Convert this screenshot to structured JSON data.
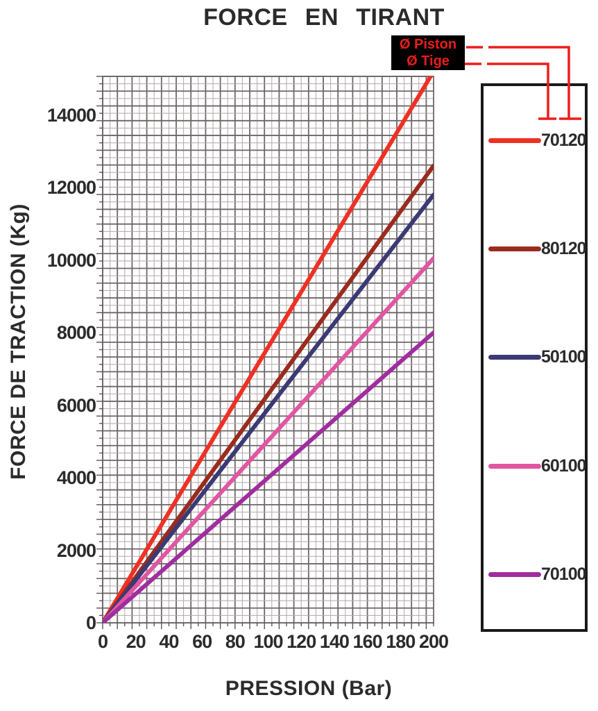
{
  "title": "FORCE EN TIRANT",
  "annotation": {
    "piston_label": "Ø Piston",
    "tige_label": "Ø Tige",
    "text_color": "#ed1c1c",
    "bg_color": "#000000",
    "connector_color": "#ed1c1c"
  },
  "legend": {
    "items": [
      {
        "label": "70120",
        "color": "#ee3124"
      },
      {
        "label": "80120",
        "color": "#9a2b1e"
      },
      {
        "label": "50100",
        "color": "#3b3a74"
      },
      {
        "label": "60100",
        "color": "#e156a2"
      },
      {
        "label": "70100",
        "color": "#a02d9f"
      }
    ]
  },
  "chart_data": {
    "type": "line",
    "title": "FORCE EN TIRANT",
    "xlabel": "PRESSION (Bar)",
    "ylabel": "FORCE DE TRACTION (Kg)",
    "xlim": [
      0,
      200
    ],
    "ylim": [
      0,
      15000
    ],
    "xticks": [
      0,
      20,
      40,
      60,
      80,
      100,
      120,
      140,
      160,
      180,
      200
    ],
    "yticks": [
      0,
      2000,
      4000,
      6000,
      8000,
      10000,
      12000,
      14000
    ],
    "grid": true,
    "legend_position": "right",
    "x": [
      0,
      200
    ],
    "series": [
      {
        "name": "70120",
        "color": "#ee3124",
        "values": [
          0,
          15200
        ]
      },
      {
        "name": "80120",
        "color": "#9a2b1e",
        "values": [
          0,
          12600
        ]
      },
      {
        "name": "50100",
        "color": "#3b3a74",
        "values": [
          0,
          11800
        ]
      },
      {
        "name": "60100",
        "color": "#e156a2",
        "values": [
          0,
          10050
        ]
      },
      {
        "name": "70100",
        "color": "#a02d9f",
        "values": [
          0,
          8000
        ]
      }
    ]
  }
}
